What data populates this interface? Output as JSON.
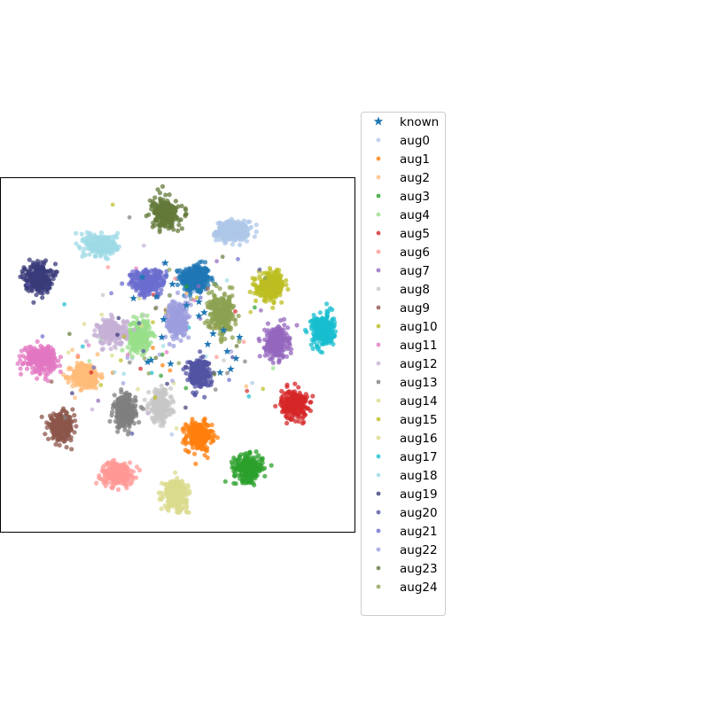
{
  "chart_data": {
    "type": "scatter",
    "title": "",
    "xlabel": "",
    "ylabel": "",
    "axis_ticks": "none",
    "grid": false,
    "legend_placement": "right, outside axes",
    "xlim": [
      -100,
      100
    ],
    "ylim": [
      -100,
      100
    ],
    "series": [
      {
        "name": "known",
        "marker": "star",
        "color": "#1f77b4",
        "points": [
          [
            -7,
            52
          ],
          [
            -3,
            40
          ],
          [
            3,
            46
          ],
          [
            8,
            38
          ],
          [
            12,
            30
          ],
          [
            15,
            24
          ],
          [
            -12,
            33
          ],
          [
            -20,
            44
          ],
          [
            -25,
            32
          ],
          [
            20,
            12
          ],
          [
            17,
            6
          ],
          [
            26,
            14
          ],
          [
            28,
            2
          ],
          [
            30,
            -8
          ],
          [
            33,
            -2
          ],
          [
            -4,
            -5
          ],
          [
            -15,
            -3
          ],
          [
            -9,
            10
          ],
          [
            -17,
            -4
          ],
          [
            24,
            -10
          ],
          [
            12,
            22
          ],
          [
            5,
            28
          ],
          [
            -8,
            20
          ],
          [
            35,
            10
          ]
        ]
      },
      {
        "name": "aug0",
        "color": "#aec7e8",
        "clusters": [
          {
            "center": [
              31,
              70
            ],
            "spread": [
              10,
              6
            ],
            "n": 300
          }
        ]
      },
      {
        "name": "aug1",
        "color": "#ff7f0e",
        "clusters": [
          {
            "center": [
              12,
              -46
            ],
            "spread": [
              8,
              9
            ],
            "n": 260
          }
        ]
      },
      {
        "name": "aug2",
        "color": "#ffbb78",
        "clusters": [
          {
            "center": [
              -52,
              -12
            ],
            "spread": [
              9,
              8
            ],
            "n": 260
          }
        ]
      },
      {
        "name": "aug3",
        "color": "#2ca02c",
        "clusters": [
          {
            "center": [
              40,
              -64
            ],
            "spread": [
              9,
              8
            ],
            "n": 260
          }
        ]
      },
      {
        "name": "aug4",
        "color": "#98df8a",
        "clusters": [
          {
            "center": [
              -22,
              11
            ],
            "spread": [
              7,
              10
            ],
            "n": 260
          }
        ]
      },
      {
        "name": "aug5",
        "color": "#d62728",
        "clusters": [
          {
            "center": [
              66,
              -28
            ],
            "spread": [
              8,
              9
            ],
            "n": 260
          }
        ]
      },
      {
        "name": "aug6",
        "color": "#ff9896",
        "clusters": [
          {
            "center": [
              -34,
              -67
            ],
            "spread": [
              10,
              7
            ],
            "n": 260
          }
        ]
      },
      {
        "name": "aug7",
        "color": "#9467bd",
        "clusters": [
          {
            "center": [
              56,
              7
            ],
            "spread": [
              7,
              10
            ],
            "n": 260
          }
        ]
      },
      {
        "name": "aug8",
        "color": "#c7c7c7",
        "clusters": [
          {
            "center": [
              -10,
              -29
            ],
            "spread": [
              7,
              10
            ],
            "n": 260
          }
        ]
      },
      {
        "name": "aug9",
        "color": "#8c564b",
        "clusters": [
          {
            "center": [
              -66,
              -41
            ],
            "spread": [
              8,
              8
            ],
            "n": 240
          }
        ]
      },
      {
        "name": "aug10",
        "color": "#bcbd22",
        "clusters": [
          {
            "center": [
              53,
              39
            ],
            "spread": [
              8,
              8
            ],
            "n": 240
          }
        ]
      },
      {
        "name": "aug11",
        "color": "#e377c2",
        "clusters": [
          {
            "center": [
              -78,
              -2
            ],
            "spread": [
              10,
              8
            ],
            "n": 260
          }
        ]
      },
      {
        "name": "aug12",
        "color": "#c5b0d5",
        "clusters": [
          {
            "center": [
              -37,
              13
            ],
            "spread": [
              9,
              8
            ],
            "n": 220
          }
        ]
      },
      {
        "name": "aug13",
        "color": "#7f7f7f",
        "clusters": [
          {
            "center": [
              -30,
              -32
            ],
            "spread": [
              7,
              10
            ],
            "n": 260
          }
        ]
      },
      {
        "name": "aug14",
        "color": "#dbdb8d",
        "clusters": [
          {
            "center": [
              -1,
              -79
            ],
            "spread": [
              7,
              9
            ],
            "n": 260
          }
        ]
      },
      {
        "name": "aug15",
        "color": "#bcbd22",
        "clusters": [
          {
            "center": [
              53,
              39
            ],
            "spread": [
              8,
              7
            ],
            "n": 120
          }
        ]
      },
      {
        "name": "aug16",
        "color": "#dbdb8d",
        "clusters": [
          {
            "center": [
              -1,
              -79
            ],
            "spread": [
              7,
              8
            ],
            "n": 120
          }
        ]
      },
      {
        "name": "aug17",
        "color": "#17becf",
        "clusters": [
          {
            "center": [
              82,
              14
            ],
            "spread": [
              7,
              10
            ],
            "n": 260
          }
        ]
      },
      {
        "name": "aug18",
        "color": "#9edae5",
        "clusters": [
          {
            "center": [
              -43,
              62
            ],
            "spread": [
              10,
              7
            ],
            "n": 260
          }
        ]
      },
      {
        "name": "aug19",
        "color": "#393b79",
        "clusters": [
          {
            "center": [
              -79,
              44
            ],
            "spread": [
              8,
              9
            ],
            "n": 260
          }
        ]
      },
      {
        "name": "aug20",
        "color": "#5254a3",
        "clusters": [
          {
            "center": [
              12,
              -10
            ],
            "spread": [
              7,
              9
            ],
            "n": 260
          }
        ]
      },
      {
        "name": "aug21",
        "color": "#6b6ecf",
        "clusters": [
          {
            "center": [
              -17,
              41
            ],
            "spread": [
              11,
              8
            ],
            "n": 260
          }
        ]
      },
      {
        "name": "aug22",
        "color": "#9c9ede",
        "clusters": [
          {
            "center": [
              0,
              20
            ],
            "spread": [
              7,
              12
            ],
            "n": 260
          }
        ]
      },
      {
        "name": "aug23",
        "color": "#637939",
        "clusters": [
          {
            "center": [
              -7,
              80
            ],
            "spread": [
              8,
              9
            ],
            "n": 260
          }
        ]
      },
      {
        "name": "aug24",
        "color": "#8ca252",
        "clusters": [
          {
            "center": [
              25,
              23
            ],
            "spread": [
              8,
              12
            ],
            "n": 260
          }
        ]
      }
    ],
    "extra_clusters": [
      {
        "series": "aug0",
        "color": "#1f77b4",
        "center": [
          10,
          43
        ],
        "spread": [
          9,
          9
        ],
        "n": 320
      }
    ]
  }
}
